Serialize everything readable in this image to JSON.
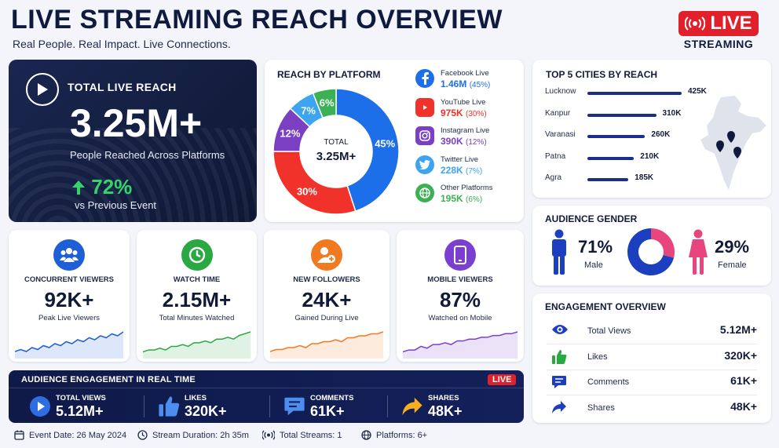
{
  "header": {
    "title": "LIVE STREAMING REACH OVERVIEW",
    "subtitle": "Real People. Real Impact. Live Connections.",
    "badge": "LIVE",
    "badge_sub": "STREAMING"
  },
  "total_reach": {
    "label": "TOTAL LIVE REACH",
    "value": "3.25M+",
    "description": "People Reached Across Platforms",
    "growth": "72%",
    "growth_note": "vs Previous Event"
  },
  "kpis": [
    {
      "label": "CONCURRENT VIEWERS",
      "value": "92K+",
      "desc": "Peak Live Viewers",
      "color": "#1f5fd6",
      "icon": "users-icon"
    },
    {
      "label": "WATCH TIME",
      "value": "2.15M+",
      "desc": "Total Minutes Watched",
      "color": "#2aa842",
      "icon": "clock-icon"
    },
    {
      "label": "NEW FOLLOWERS",
      "value": "24K+",
      "desc": "Gained During Live",
      "color": "#f07a22",
      "icon": "add-user-icon"
    },
    {
      "label": "MOBILE VIEWERS",
      "value": "87%",
      "desc": "Watched on Mobile",
      "color": "#7a3fd0",
      "icon": "mobile-icon"
    }
  ],
  "gender": {
    "title": "AUDIENCE GENDER",
    "male_pct": "71%",
    "male_label": "Male",
    "female_pct": "29%",
    "female_label": "Female",
    "male_color": "#1c3fbf",
    "female_color": "#e8457e"
  },
  "engagement_overview": {
    "title": "ENGAGEMENT OVERVIEW",
    "rows": [
      {
        "label": "Total Views",
        "value": "5.12M+",
        "icon": "eye-icon"
      },
      {
        "label": "Likes",
        "value": "320K+",
        "icon": "thumbs-up-icon"
      },
      {
        "label": "Comments",
        "value": "61K+",
        "icon": "comment-icon"
      },
      {
        "label": "Shares",
        "value": "48K+",
        "icon": "share-icon"
      }
    ]
  },
  "realtime": {
    "title": "AUDIENCE ENGAGEMENT IN REAL TIME",
    "badge": "LIVE",
    "items": [
      {
        "label": "TOTAL VIEWS",
        "value": "5.12M+",
        "icon": "play-icon"
      },
      {
        "label": "LIKES",
        "value": "320K+",
        "icon": "thumbs-up-icon"
      },
      {
        "label": "COMMENTS",
        "value": "61K+",
        "icon": "comment-icon"
      },
      {
        "label": "SHARES",
        "value": "48K+",
        "icon": "share-icon"
      }
    ]
  },
  "footer": {
    "event_date": "Event Date: 26 May 2024",
    "duration": "Stream Duration: 2h 35m",
    "streams": "Total Streams: 1",
    "platforms": "Platforms: 6+"
  },
  "chart_data": [
    {
      "type": "pie",
      "title": "REACH BY PLATFORM",
      "center_label": "TOTAL",
      "center_value": "3.25M+",
      "slices": [
        {
          "name": "Facebook Live",
          "value_label": "1.46M",
          "percent": 45,
          "pct_label": "(45%)",
          "label": "45%",
          "color": "#1c6fe8",
          "icon": "facebook-icon"
        },
        {
          "name": "YouTube Live",
          "value_label": "975K",
          "percent": 30,
          "pct_label": "(30%)",
          "label": "30%",
          "color": "#f0322a",
          "icon": "youtube-icon"
        },
        {
          "name": "Instagram Live",
          "value_label": "390K",
          "percent": 12,
          "pct_label": "(12%)",
          "label": "12%",
          "color": "#7b3fc4",
          "icon": "instagram-icon"
        },
        {
          "name": "Twitter Live",
          "value_label": "228K",
          "percent": 7,
          "pct_label": "(7%)",
          "label": "7%",
          "color": "#3da4ef",
          "icon": "twitter-icon"
        },
        {
          "name": "Other Platforms",
          "value_label": "195K",
          "percent": 6,
          "pct_label": "(6%)",
          "label": "6%",
          "color": "#3bb054",
          "icon": "globe-icon"
        }
      ]
    },
    {
      "type": "bar",
      "title": "TOP 5 CITIES BY REACH",
      "orientation": "horizontal",
      "categories": [
        "Lucknow",
        "Kanpur",
        "Varanasi",
        "Patna",
        "Agra"
      ],
      "values": [
        425,
        310,
        260,
        210,
        185
      ],
      "value_labels": [
        "425K",
        "310K",
        "260K",
        "210K",
        "185K"
      ],
      "unit": "K",
      "color": "#1c2d8c"
    },
    {
      "type": "pie",
      "title": "AUDIENCE GENDER",
      "slices": [
        {
          "name": "Male",
          "percent": 71,
          "color": "#1c3fbf"
        },
        {
          "name": "Female",
          "percent": 29,
          "color": "#e8457e"
        }
      ]
    },
    {
      "type": "line",
      "series": [
        {
          "values": [
            3,
            4,
            3,
            5,
            4,
            6,
            5,
            7,
            6,
            8,
            7,
            9,
            8,
            10,
            9,
            11,
            10,
            12,
            11,
            13
          ]
        },
        {
          "values": [
            2,
            3,
            3,
            4,
            3,
            5,
            5,
            6,
            5,
            7,
            7,
            8,
            7,
            9,
            9,
            10,
            9,
            11,
            12,
            13
          ]
        },
        {
          "values": [
            3,
            4,
            4,
            5,
            5,
            6,
            5,
            7,
            7,
            8,
            8,
            9,
            8,
            10,
            10,
            11,
            11,
            12,
            12,
            13
          ]
        },
        {
          "values": [
            2,
            3,
            3,
            5,
            4,
            6,
            6,
            7,
            6,
            8,
            8,
            9,
            9,
            10,
            10,
            11,
            11,
            12,
            12,
            13
          ]
        }
      ]
    }
  ]
}
